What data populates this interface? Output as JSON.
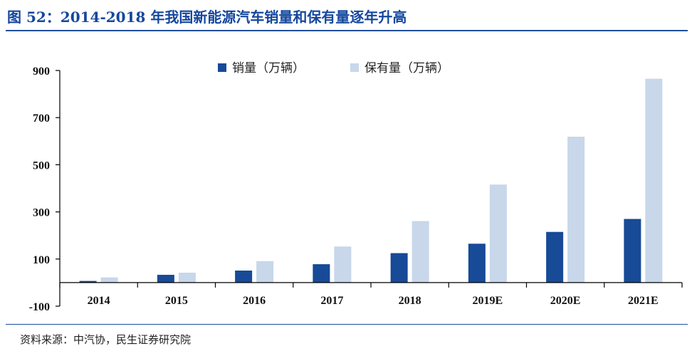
{
  "title": "图 52：2014-2018 年我国新能源汽车销量和保有量逐年升高",
  "source": "资料来源：中汽协，民生证券研究院",
  "colors": {
    "sales": "#174a97",
    "stock": "#c8d7ea",
    "title": "#14479e"
  },
  "chart_data": {
    "type": "bar",
    "title": "",
    "xlabel": "",
    "ylabel": "",
    "categories": [
      "2014",
      "2015",
      "2016",
      "2017",
      "2018",
      "2019E",
      "2020E",
      "2021E"
    ],
    "series": [
      {
        "name": "销量（万辆）",
        "values": [
          7,
          33,
          51,
          78,
          125,
          165,
          215,
          270
        ]
      },
      {
        "name": "保有量（万辆）",
        "values": [
          22,
          42,
          91,
          153,
          261,
          416,
          619,
          865
        ]
      }
    ],
    "ylim": [
      -100,
      900
    ],
    "yticks": [
      "900",
      "700",
      "500",
      "300",
      "100",
      "-100"
    ],
    "yticks_values": [
      900,
      700,
      500,
      300,
      100,
      -100
    ],
    "legend_position": "top-center",
    "grid": false
  }
}
